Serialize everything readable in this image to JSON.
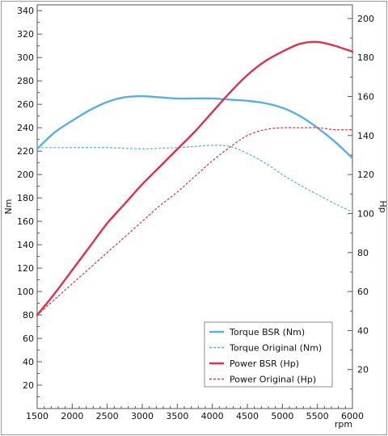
{
  "chart_data": {
    "type": "line",
    "xlabel": "rpm",
    "ylabel_left": "Nm",
    "ylabel_right": "Hp",
    "x_range": [
      1500,
      6000
    ],
    "x_ticks": [
      1500,
      2000,
      2500,
      3000,
      3500,
      4000,
      4500,
      5000,
      5500,
      6000
    ],
    "y_left_range": [
      0,
      345
    ],
    "y_left_ticks": [
      20,
      40,
      60,
      80,
      100,
      120,
      140,
      160,
      180,
      200,
      220,
      240,
      260,
      280,
      300,
      320,
      340
    ],
    "y_right_range": [
      0,
      207
    ],
    "y_right_ticks": [
      20,
      40,
      60,
      80,
      100,
      120,
      140,
      160,
      180,
      200
    ],
    "grid": false,
    "legend_position": "bottom-right",
    "series": [
      {
        "name": "Torque BSR (Nm)",
        "axis": "left",
        "style": "solid",
        "color": "#5aaee8",
        "x": [
          1500,
          1750,
          2000,
          2250,
          2500,
          2750,
          3000,
          3250,
          3500,
          3750,
          4000,
          4250,
          4500,
          4750,
          5000,
          5250,
          5500,
          5750,
          6000
        ],
        "y": [
          222,
          236,
          246,
          255,
          262,
          266,
          267,
          266,
          265,
          265,
          265,
          264,
          263,
          261,
          257,
          250,
          240,
          228,
          214
        ]
      },
      {
        "name": "Torque Original (Nm)",
        "axis": "left",
        "style": "dashed",
        "color": "#5aaee8",
        "x": [
          1500,
          1750,
          2000,
          2500,
          3000,
          3500,
          3750,
          4000,
          4250,
          4500,
          4750,
          5000,
          5250,
          5500,
          5750,
          6000
        ],
        "y": [
          223,
          223,
          223,
          223,
          222,
          223,
          224,
          225,
          224,
          218,
          210,
          200,
          191,
          183,
          175,
          168
        ]
      },
      {
        "name": "Power BSR (Hp)",
        "axis": "right",
        "style": "solid",
        "color": "#e0304c",
        "x": [
          1500,
          1750,
          2000,
          2250,
          2500,
          2750,
          3000,
          3250,
          3500,
          3750,
          4000,
          4250,
          4500,
          4750,
          5000,
          5250,
          5500,
          5750,
          6000
        ],
        "y": [
          48,
          59,
          71,
          83,
          95,
          105,
          115,
          124,
          133,
          142,
          152,
          162,
          171,
          178,
          183,
          187,
          188,
          186,
          183
        ]
      },
      {
        "name": "Power Original (Hp)",
        "axis": "right",
        "style": "dashed",
        "color": "#e0304c",
        "x": [
          1500,
          1750,
          2000,
          2250,
          2500,
          2750,
          3000,
          3250,
          3500,
          3750,
          4000,
          4250,
          4500,
          4750,
          5000,
          5250,
          5500,
          5750,
          6000
        ],
        "y": [
          48,
          56,
          64,
          72,
          80,
          88,
          96,
          104,
          111,
          119,
          127,
          134,
          140,
          143,
          144,
          144,
          144,
          143,
          143
        ]
      }
    ]
  }
}
